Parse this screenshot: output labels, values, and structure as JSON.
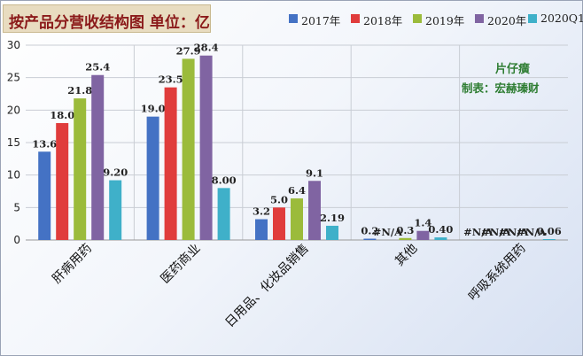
{
  "header": {
    "title": "按产品分营收结构图 单位：亿"
  },
  "watermark": {
    "line1": "片仔癀",
    "line2": "制表：宏赫瑧财"
  },
  "colors": {
    "2017年": "#4472c4",
    "2018年": "#e03c3c",
    "2019年": "#9bbb3b",
    "2020年": "#8064a2",
    "2020Q1": "#3fb0c9"
  },
  "chart_data": {
    "type": "bar",
    "title": "按产品分营收结构图 单位：亿",
    "categories": [
      "肝病用药",
      "医药商业",
      "日用品、化妆品销售",
      "其他",
      "呼吸系统用药"
    ],
    "ylim": [
      0,
      30
    ],
    "yticks": [
      "0",
      "5",
      "10",
      "15",
      "20",
      "25",
      "30"
    ],
    "grid": true,
    "legend_position": "top-right",
    "series": [
      {
        "name": "2017年",
        "values": [
          13.6,
          19.0,
          3.2,
          0.2,
          null
        ],
        "labels": [
          "13.6",
          "19.0",
          "3.2",
          "0.2",
          "#N/A"
        ]
      },
      {
        "name": "2018年",
        "values": [
          18.0,
          23.5,
          5.0,
          null,
          null
        ],
        "labels": [
          "18.0",
          "23.5",
          "5.0",
          "#N/A",
          "#N/A"
        ]
      },
      {
        "name": "2019年",
        "values": [
          21.8,
          27.9,
          6.4,
          0.3,
          null
        ],
        "labels": [
          "21.8",
          "27.9",
          "6.4",
          "0.3",
          "#N/A"
        ]
      },
      {
        "name": "2020年",
        "values": [
          25.4,
          28.4,
          9.1,
          1.4,
          null
        ],
        "labels": [
          "25.4",
          "28.4",
          "9.1",
          "1.4",
          "#N/A"
        ]
      },
      {
        "name": "2020Q1",
        "values": [
          9.2,
          8.0,
          2.19,
          0.4,
          0.06
        ],
        "labels": [
          "9.20",
          "8.00",
          "2.19",
          "0.40",
          "0.06"
        ]
      }
    ]
  }
}
